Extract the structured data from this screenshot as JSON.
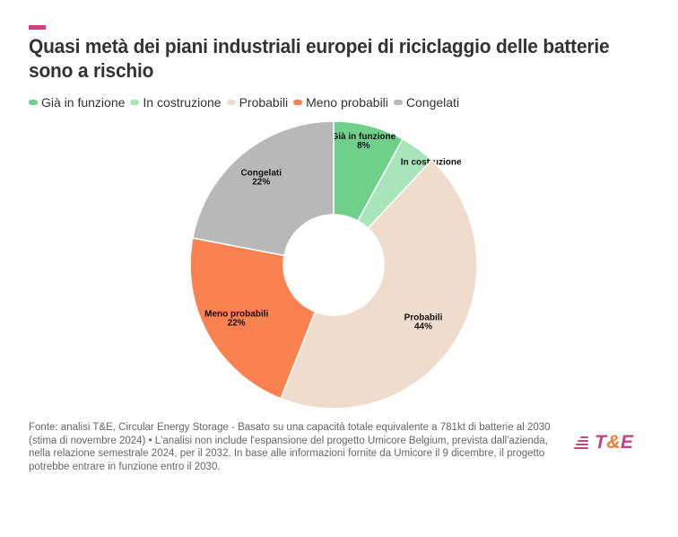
{
  "header": {
    "accent_color": "#c44581",
    "title": "Quasi metà dei piani industriali europei di riciclaggio delle batterie sono a rischio"
  },
  "chart_data": {
    "type": "pie",
    "variant": "donut",
    "title": "Quasi metà dei piani industriali europei di riciclaggio delle batterie sono a rischio",
    "legend_position": "top-left",
    "unit": "%",
    "categories": [
      "Già in funzione",
      "In costruzione",
      "Probabili",
      "Meno probabili",
      "Congelati"
    ],
    "values": [
      8,
      4,
      44,
      22,
      22
    ],
    "labels": [
      "8%",
      "4%",
      "44%",
      "22%",
      "22%"
    ],
    "colors": [
      "#6fd08c",
      "#a8e5bb",
      "#efdccd",
      "#fa8150",
      "#b8b8b8"
    ],
    "start_angle": "top",
    "direction": "clockwise"
  },
  "footer": {
    "source_text": "Fonte: analisi T&E, Circular Energy Storage - Basato su una capacità totale equivalente a 781kt di batterie al 2030 (stima di novembre 2024) • L'analisi non include l'espansione del progetto Umicore Belgium, prevista dall'azienda, nella relazione semestrale 2024, per il 2032. In base alle informazioni fornite da Umicore il 9 dicembre, il progetto potrebbe entrare in funzione entro il 2030."
  },
  "logo": {
    "icon": "stacked-lines-icon",
    "t": "T",
    "amp": "&",
    "e": "E"
  }
}
